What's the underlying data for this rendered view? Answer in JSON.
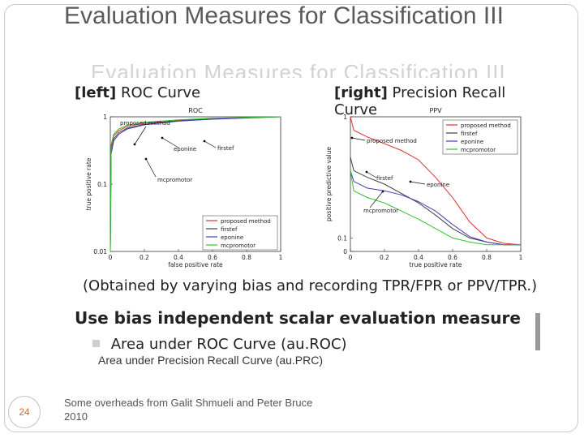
{
  "slide": {
    "title": "Evaluation Measures for Classification III",
    "ghost_title": "Evaluation Measures for Classification III",
    "page_number": "24",
    "footer_note": "Some overheads from Galit Shmueli and Peter Bruce 2010",
    "bullet_2": "Area under Precision Recall Curve (au.PRC)"
  },
  "figure": {
    "left_label_bold": "[left]",
    "left_label": "ROC Curve",
    "right_label_bold": "[right]",
    "right_label": "Precision Recall Curve",
    "obtained": "(Obtained by varying bias and recording TPR/FPR or PPV/TPR.)",
    "heading": "Use bias independent scalar evaluation measure",
    "bullet_1": "Area under ROC Curve (au.ROC)"
  },
  "chart_data": [
    {
      "type": "line",
      "title": "ROC",
      "xlabel": "false positive rate",
      "ylabel": "true positive rate",
      "xlim": [
        0,
        1
      ],
      "ylim": [
        0.01,
        1
      ],
      "x_ticks": [
        "0",
        "0.2",
        "0.4",
        "0.6",
        "0.8",
        "1"
      ],
      "y_ticks": [
        "0.01",
        "0.1",
        "1"
      ],
      "legend_position": "bottom-right",
      "series": [
        {
          "name": "proposed method",
          "color": "#e03030",
          "x": [
            0,
            0.005,
            0.02,
            0.05,
            0.1,
            0.2,
            0.4,
            0.6,
            0.8,
            1
          ],
          "y": [
            0.01,
            0.35,
            0.52,
            0.62,
            0.72,
            0.8,
            0.88,
            0.93,
            0.97,
            1
          ]
        },
        {
          "name": "firstef",
          "color": "#404040",
          "x": [
            0,
            0.005,
            0.02,
            0.05,
            0.1,
            0.2,
            0.4,
            0.6,
            0.8,
            1
          ],
          "y": [
            0.01,
            0.3,
            0.47,
            0.58,
            0.68,
            0.77,
            0.87,
            0.93,
            0.97,
            1
          ]
        },
        {
          "name": "eponine",
          "color": "#4040c0",
          "x": [
            0,
            0.005,
            0.02,
            0.05,
            0.1,
            0.2,
            0.4,
            0.6,
            0.8,
            1
          ],
          "y": [
            0.01,
            0.28,
            0.44,
            0.55,
            0.66,
            0.76,
            0.86,
            0.92,
            0.96,
            1
          ]
        },
        {
          "name": "mcpromotor",
          "color": "#30c030",
          "x": [
            0,
            0.005,
            0.02,
            0.05,
            0.1,
            0.2,
            0.4,
            0.6,
            0.8,
            1
          ],
          "y": [
            0.01,
            0.38,
            0.55,
            0.66,
            0.75,
            0.83,
            0.9,
            0.95,
            0.98,
            1
          ]
        }
      ],
      "annotations": [
        "proposed method",
        "firstef",
        "eponine",
        "mcpromotor"
      ]
    },
    {
      "type": "line",
      "title": "PPV",
      "xlabel": "true positive rate",
      "ylabel": "positive predictive value",
      "xlim": [
        0,
        1
      ],
      "ylim": [
        0,
        1
      ],
      "x_ticks": [
        "0",
        "0.2",
        "0.4",
        "0.6",
        "0.8",
        "1"
      ],
      "y_ticks": [
        "0",
        "0.1",
        "1"
      ],
      "legend_position": "top-right",
      "series": [
        {
          "name": "proposed method",
          "color": "#e03030",
          "x": [
            0,
            0.02,
            0.1,
            0.2,
            0.3,
            0.4,
            0.5,
            0.6,
            0.7,
            0.8,
            0.9,
            1
          ],
          "y": [
            1,
            0.9,
            0.85,
            0.8,
            0.75,
            0.68,
            0.55,
            0.4,
            0.22,
            0.1,
            0.06,
            0.05
          ]
        },
        {
          "name": "firstef",
          "color": "#404040",
          "x": [
            0,
            0.02,
            0.1,
            0.2,
            0.3,
            0.4,
            0.5,
            0.6,
            0.7,
            0.8,
            0.9,
            1
          ],
          "y": [
            0.7,
            0.6,
            0.55,
            0.5,
            0.43,
            0.36,
            0.27,
            0.17,
            0.1,
            0.07,
            0.05,
            0.05
          ]
        },
        {
          "name": "eponine",
          "color": "#4040c0",
          "x": [
            0,
            0.02,
            0.1,
            0.2,
            0.3,
            0.4,
            0.5,
            0.6,
            0.7,
            0.8,
            0.9,
            1
          ],
          "y": [
            0.6,
            0.52,
            0.47,
            0.45,
            0.42,
            0.37,
            0.3,
            0.2,
            0.11,
            0.07,
            0.05,
            0.05
          ]
        },
        {
          "name": "mcpromotor",
          "color": "#30c030",
          "x": [
            0,
            0.02,
            0.1,
            0.2,
            0.3,
            0.4,
            0.5,
            0.6,
            0.7,
            0.8,
            0.9,
            1
          ],
          "y": [
            0.6,
            0.45,
            0.4,
            0.36,
            0.3,
            0.24,
            0.17,
            0.1,
            0.07,
            0.05,
            0.05,
            0.05
          ]
        }
      ],
      "annotations": [
        "proposed method",
        "firstef",
        "eponine",
        "mcpromotor"
      ]
    }
  ]
}
